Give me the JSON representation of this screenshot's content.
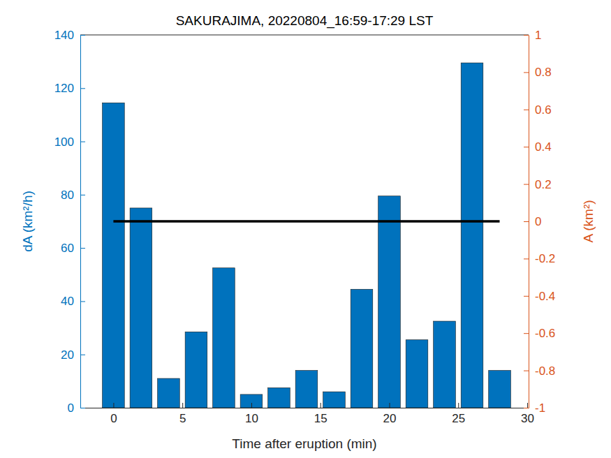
{
  "chart_data": {
    "type": "bar",
    "title": "SAKURAJIMA, 20220804_16:59-17:29 LST",
    "x_label": "Time after eruption (min)",
    "y_label": "dA (km²/h)",
    "y2_label": "A (km²)",
    "x": [
      0,
      2,
      4,
      6,
      8,
      10,
      12,
      14,
      16,
      18,
      20,
      22,
      24,
      26,
      28
    ],
    "series": [
      {
        "type": "bar",
        "color": "#0072BD",
        "values": [
          114.5,
          75,
          11,
          28.5,
          52.5,
          5,
          7.5,
          14,
          6,
          44.5,
          79.5,
          25.5,
          32.5,
          129.5,
          14
        ]
      },
      {
        "type": "line",
        "axis": "y2",
        "color": "#000000",
        "line_style": "solid",
        "values": [
          0,
          0,
          0,
          0,
          0,
          0,
          0,
          0,
          0,
          0,
          0,
          0,
          0,
          0,
          0
        ]
      }
    ],
    "xlim": [
      -2.4,
      30.1
    ],
    "xticks": [
      0,
      5,
      10,
      15,
      20,
      25,
      30
    ],
    "ylim": [
      0,
      140
    ],
    "yticks": [
      0,
      20,
      40,
      60,
      80,
      100,
      120,
      140
    ],
    "y2lim": [
      -1,
      1
    ],
    "y2ticks": [
      -1,
      -0.8,
      -0.6,
      -0.4,
      -0.2,
      0,
      0.2,
      0.4,
      0.6,
      0.8,
      1
    ],
    "grid": false
  }
}
